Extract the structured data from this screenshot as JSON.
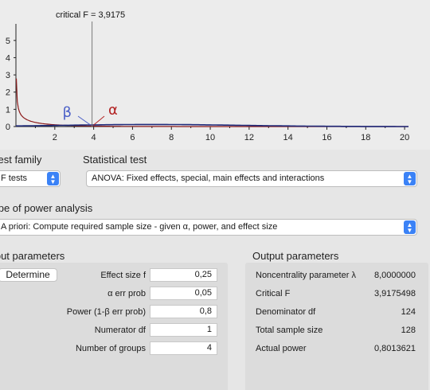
{
  "plot": {
    "critical_label": "critical F = 3,9175",
    "beta_symbol": "β",
    "alpha_symbol": "α",
    "x_ticks": [
      "2",
      "4",
      "6",
      "8",
      "10",
      "12",
      "14",
      "16",
      "18",
      "20"
    ],
    "y_ticks": [
      "0",
      "1",
      "2",
      "3",
      "4",
      "5"
    ],
    "critical_F": 3.9175,
    "colors": {
      "central": "#8b1a1a",
      "noncentral": "#1f2a7a",
      "beta": "#4a5fc7",
      "alpha": "#b22222",
      "critical_line": "#7a7a7a"
    }
  },
  "test_family": {
    "label": "Test family",
    "value": "F tests"
  },
  "statistical_test": {
    "label": "Statistical test",
    "value": "ANOVA: Fixed effects, special, main effects and interactions"
  },
  "power_analysis": {
    "label": "Type of power analysis",
    "value": "A priori: Compute required sample size - given α, power, and effect size"
  },
  "input_parameters": {
    "title": "Input parameters",
    "determine_label": "Determine",
    "rows": [
      {
        "label": "Effect size f",
        "value": "0,25"
      },
      {
        "label": "α err prob",
        "value": "0,05"
      },
      {
        "label": "Power (1-β err prob)",
        "value": "0,8"
      },
      {
        "label": "Numerator df",
        "value": "1"
      },
      {
        "label": "Number of groups",
        "value": "4"
      }
    ]
  },
  "output_parameters": {
    "title": "Output parameters",
    "rows": [
      {
        "label": "Noncentrality parameter λ",
        "value": "8,0000000"
      },
      {
        "label": "Critical F",
        "value": "3,9175498"
      },
      {
        "label": "Denominator df",
        "value": "124"
      },
      {
        "label": "Total sample size",
        "value": "128"
      },
      {
        "label": "Actual power",
        "value": "0,8013621"
      }
    ]
  },
  "icons": {
    "select_arrows": "up-down-chevron-icon"
  }
}
